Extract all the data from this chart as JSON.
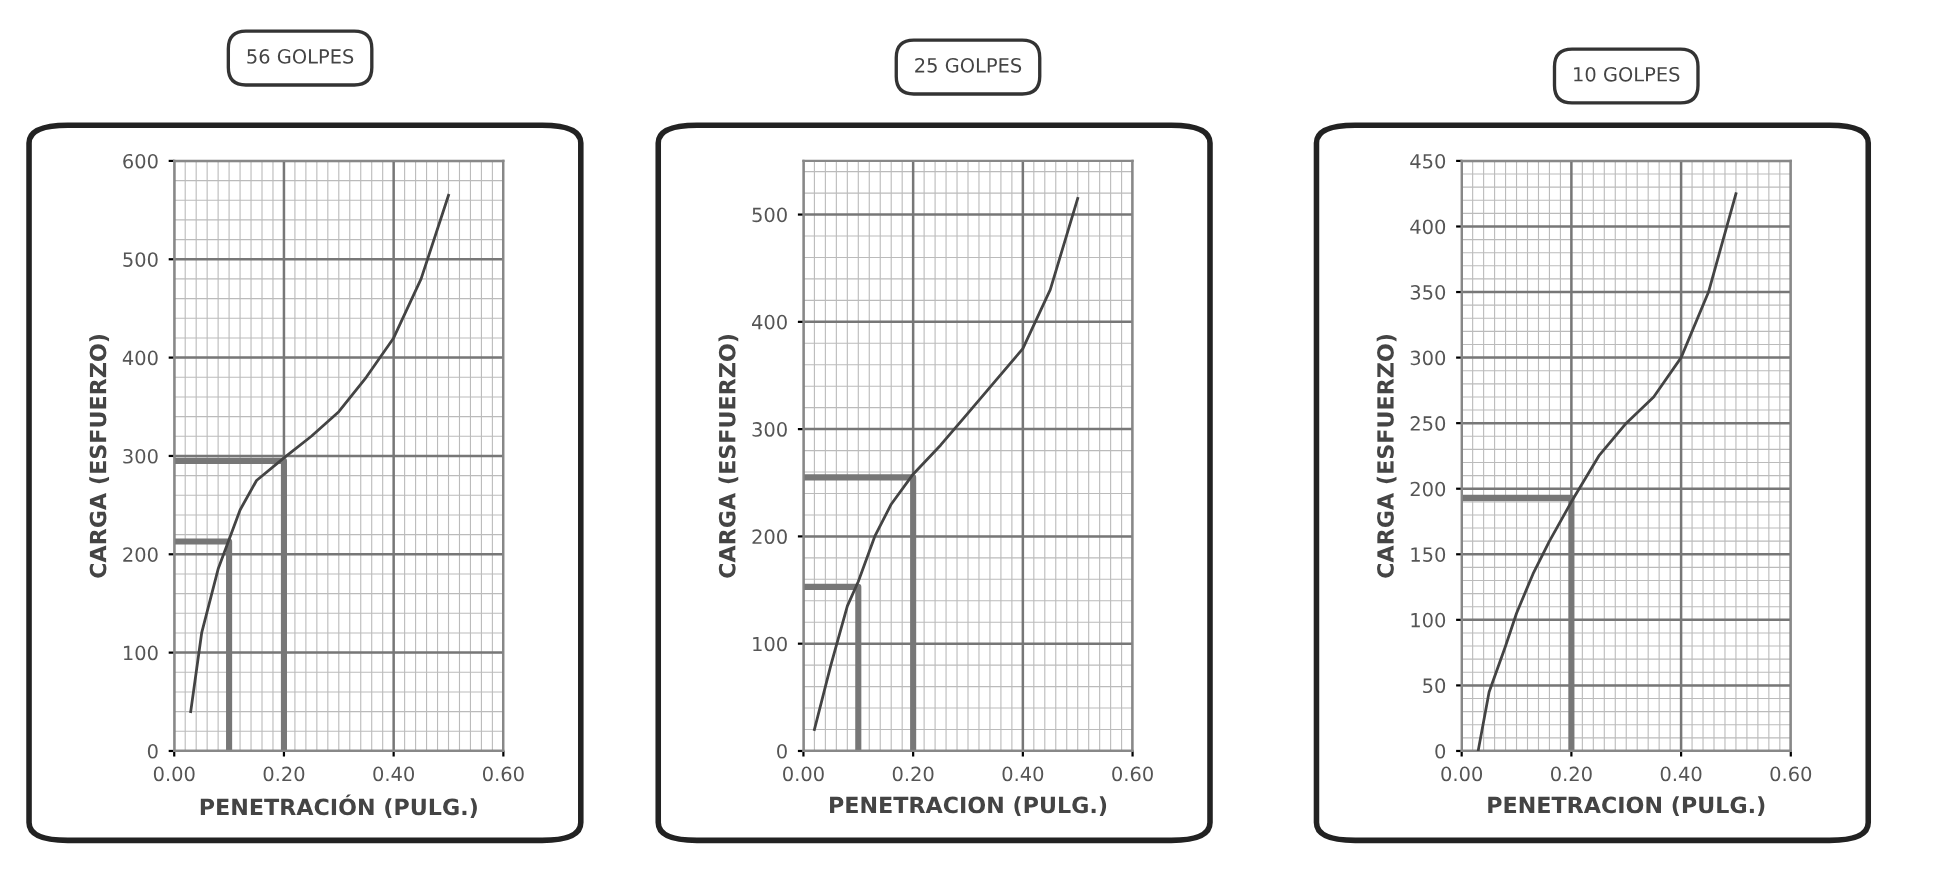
{
  "chart_data": [
    {
      "type": "line",
      "title": "56 GOLPES",
      "xlabel": "PENETRACIÓN (PULG.)",
      "ylabel": "CARGA (ESFUERZO)",
      "x": [
        0.03,
        0.05,
        0.08,
        0.1,
        0.12,
        0.15,
        0.2,
        0.25,
        0.3,
        0.35,
        0.4,
        0.45,
        0.5
      ],
      "series": [
        {
          "color": "#444444",
          "values": [
            40,
            120,
            185,
            215,
            245,
            275,
            298,
            320,
            345,
            380,
            420,
            480,
            565
          ]
        },
        {
          "color": "#777777",
          "x": [
            0,
            0.1,
            0.1
          ],
          "values": [
            213,
            213,
            0
          ]
        },
        {
          "color": "#777777",
          "x": [
            0,
            0.2,
            0.2
          ],
          "values": [
            295,
            295,
            0
          ]
        }
      ],
      "xlim": [
        0,
        0.6
      ],
      "ylim": [
        0,
        600
      ],
      "xticks": [
        {
          "value": 0,
          "label": "0.00"
        },
        {
          "value": 0.2,
          "label": "0.20"
        },
        {
          "value": 0.4,
          "label": "0.40"
        },
        {
          "value": 0.6,
          "label": "0.60"
        }
      ],
      "yticks": [
        0,
        100,
        200,
        300,
        400,
        500,
        600
      ],
      "grid": true
    },
    {
      "type": "line",
      "title": "25 GOLPES",
      "xlabel": "PENETRACION (PULG.)",
      "ylabel": "CARGA (ESFUERZO)",
      "x": [
        0.02,
        0.05,
        0.08,
        0.1,
        0.13,
        0.16,
        0.2,
        0.25,
        0.3,
        0.35,
        0.4,
        0.45,
        0.5
      ],
      "series": [
        {
          "color": "#444444",
          "values": [
            20,
            80,
            135,
            158,
            200,
            230,
            258,
            285,
            315,
            345,
            375,
            430,
            515
          ]
        },
        {
          "color": "#777777",
          "x": [
            0,
            0.1,
            0.1
          ],
          "values": [
            153,
            153,
            0
          ]
        },
        {
          "color": "#777777",
          "x": [
            0,
            0.2,
            0.2
          ],
          "values": [
            255,
            255,
            0
          ]
        }
      ],
      "xlim": [
        0,
        0.6
      ],
      "ylim": [
        0,
        550
      ],
      "xticks": [
        {
          "value": 0,
          "label": "0.00"
        },
        {
          "value": 0.2,
          "label": "0.20"
        },
        {
          "value": 0.4,
          "label": "0.40"
        },
        {
          "value": 0.6,
          "label": "0.60"
        }
      ],
      "yticks": [
        0,
        100,
        200,
        300,
        400,
        500
      ],
      "grid": true
    },
    {
      "type": "line",
      "title": "10 GOLPES",
      "xlabel": "PENETRACION (PULG.)",
      "ylabel": "CARGA (ESFUERZO)",
      "x": [
        0.03,
        0.05,
        0.08,
        0.1,
        0.13,
        0.16,
        0.2,
        0.25,
        0.3,
        0.35,
        0.4,
        0.45,
        0.5
      ],
      "series": [
        {
          "color": "#444444",
          "values": [
            0,
            45,
            80,
            105,
            135,
            160,
            190,
            225,
            250,
            270,
            300,
            350,
            425
          ]
        },
        {
          "color": "#777777",
          "x": [
            0,
            0.2,
            0.2
          ],
          "values": [
            193,
            193,
            0
          ]
        }
      ],
      "xlim": [
        0,
        0.6
      ],
      "ylim": [
        0,
        450
      ],
      "xticks": [
        {
          "value": 0,
          "label": "0.00"
        },
        {
          "value": 0.2,
          "label": "0.20"
        },
        {
          "value": 0.4,
          "label": "0.40"
        },
        {
          "value": 0.6,
          "label": "0.60"
        }
      ],
      "yticks": [
        0,
        50,
        100,
        150,
        200,
        250,
        300,
        350,
        400,
        450
      ],
      "grid": true
    }
  ]
}
